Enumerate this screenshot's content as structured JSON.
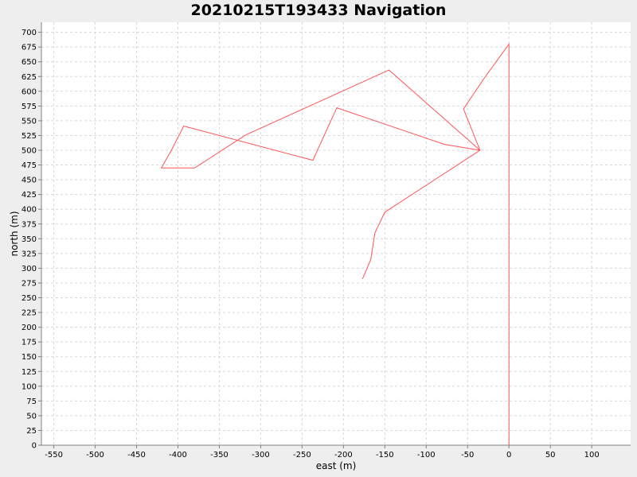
{
  "chart_data": {
    "type": "line",
    "title": "20210215T193433 Navigation",
    "xlabel": "east (m)",
    "ylabel": "north (m)",
    "xlim": [
      -565,
      147
    ],
    "ylim": [
      0,
      717
    ],
    "xticks": [
      -550,
      -500,
      -450,
      -400,
      -350,
      -300,
      -250,
      -200,
      -150,
      -100,
      -50,
      0,
      50,
      100
    ],
    "yticks": [
      0,
      25,
      50,
      75,
      100,
      125,
      150,
      175,
      200,
      225,
      250,
      275,
      300,
      325,
      350,
      375,
      400,
      425,
      450,
      475,
      500,
      525,
      550,
      575,
      600,
      625,
      650,
      675,
      700
    ],
    "grid": true,
    "series": [
      {
        "color": "#ff5555",
        "points": [
          [
            0,
            0
          ],
          [
            0,
            680
          ],
          [
            -30,
            622
          ],
          [
            -55,
            570
          ],
          [
            -35,
            500
          ],
          [
            -150,
            395
          ],
          [
            -162,
            360
          ],
          [
            -167,
            315
          ],
          [
            -177,
            282
          ]
        ]
      }
    ],
    "series_extra": [
      {
        "color": "#ff5555",
        "points": [
          [
            -35,
            500
          ],
          [
            -145,
            636
          ],
          [
            -318,
            526
          ],
          [
            -380,
            470
          ],
          [
            -420,
            470
          ],
          [
            -408,
            500
          ],
          [
            -393,
            541
          ],
          [
            -237,
            483
          ],
          [
            -208,
            572
          ],
          [
            -78,
            510
          ],
          [
            -35,
            500
          ]
        ]
      }
    ]
  }
}
